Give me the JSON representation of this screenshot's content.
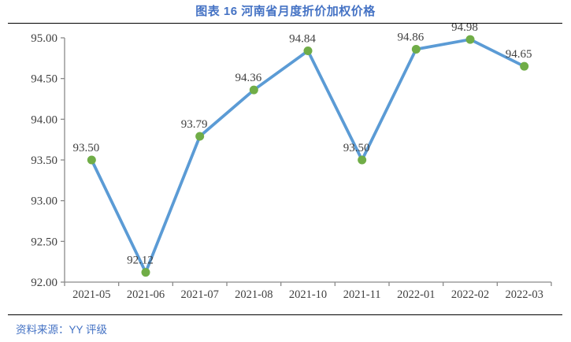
{
  "header": {
    "title": "图表 16 河南省月度折价加权价格"
  },
  "footer": {
    "source_label": "资料来源：YY 评级"
  },
  "colors": {
    "accent_blue": "#4472C4",
    "line": "#5B9BD5",
    "marker": "#70AD47",
    "axis": "#8a8a8a",
    "tick_text": "#3f3f3f",
    "data_label_text": "#404040",
    "rule": "#000000"
  },
  "chart_data": {
    "type": "line",
    "title": "图表 16 河南省月度折价加权价格",
    "categories": [
      "2021-05",
      "2021-06",
      "2021-07",
      "2021-08",
      "2021-10",
      "2021-11",
      "2022-01",
      "2022-02",
      "2022-03"
    ],
    "values": [
      93.5,
      92.12,
      93.79,
      94.36,
      94.84,
      93.5,
      94.86,
      94.98,
      94.65
    ],
    "data_labels": [
      "93.50",
      "92.12",
      "93.79",
      "94.36",
      "94.84",
      "93.50",
      "94.86",
      "94.98",
      "94.65"
    ],
    "xlabel": "",
    "ylabel": "",
    "ylim": [
      92.0,
      95.0
    ],
    "ytick_step": 0.5,
    "ytick_labels": [
      "92.00",
      "92.50",
      "93.00",
      "93.50",
      "94.00",
      "94.50",
      "95.00"
    ],
    "grid": false,
    "legend": "none"
  }
}
